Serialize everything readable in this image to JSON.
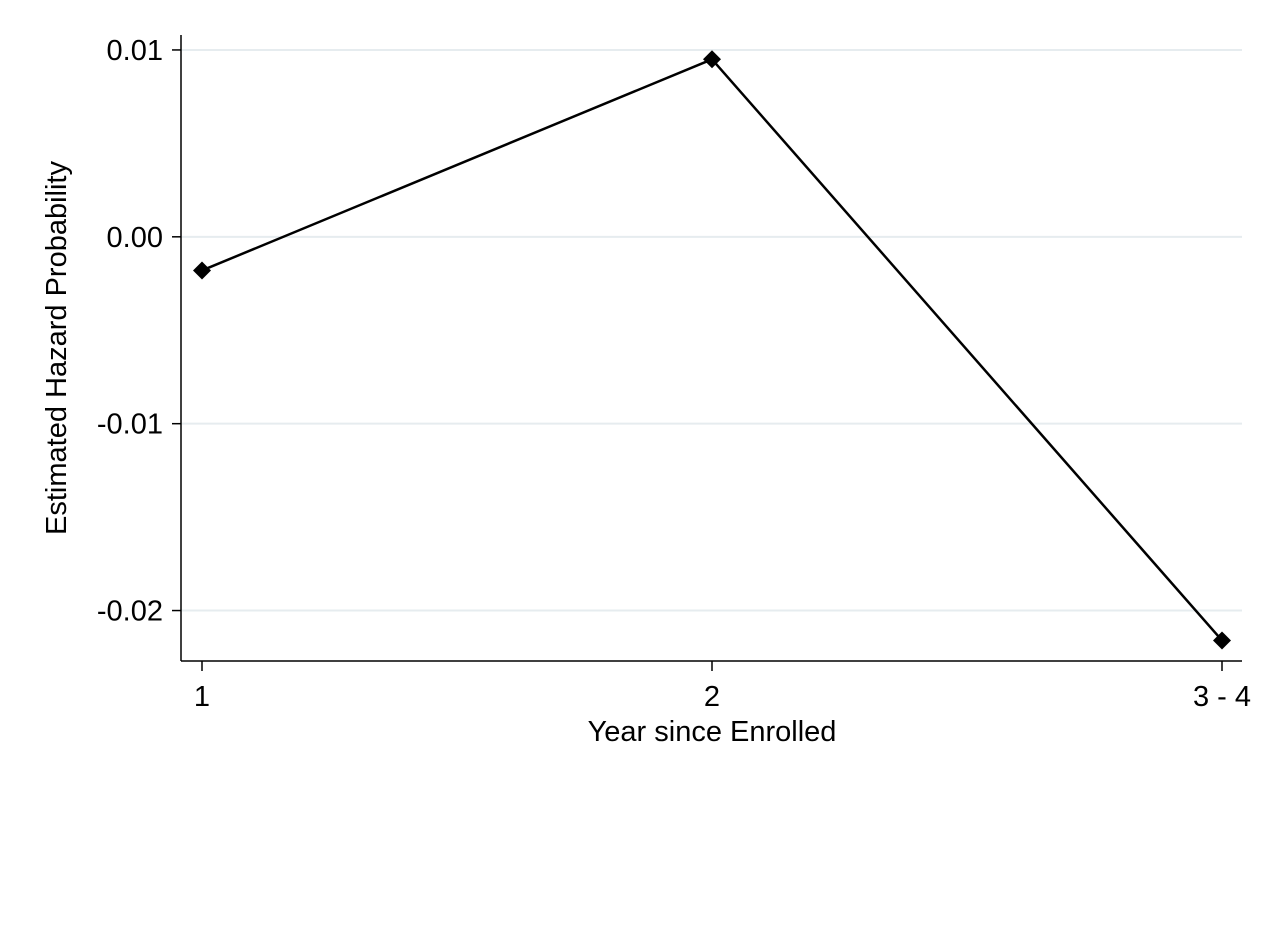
{
  "chart_data": {
    "type": "line",
    "title": "",
    "xlabel": "Year since Enrolled",
    "ylabel": "Estimated Hazard Probability",
    "categories": [
      "1",
      "2",
      "3 - 4"
    ],
    "series": [
      {
        "values": [
          -0.0018,
          0.0095,
          -0.0216
        ],
        "marker": "diamond",
        "color": "#000000"
      }
    ],
    "yticks": [
      0.01,
      0.0,
      -0.01,
      -0.02
    ],
    "ytick_labels": [
      "0.01",
      "0.00",
      "-0.01",
      "-0.02"
    ],
    "ylim": [
      -0.0227,
      0.0108
    ],
    "grid": true,
    "legend": "none"
  }
}
